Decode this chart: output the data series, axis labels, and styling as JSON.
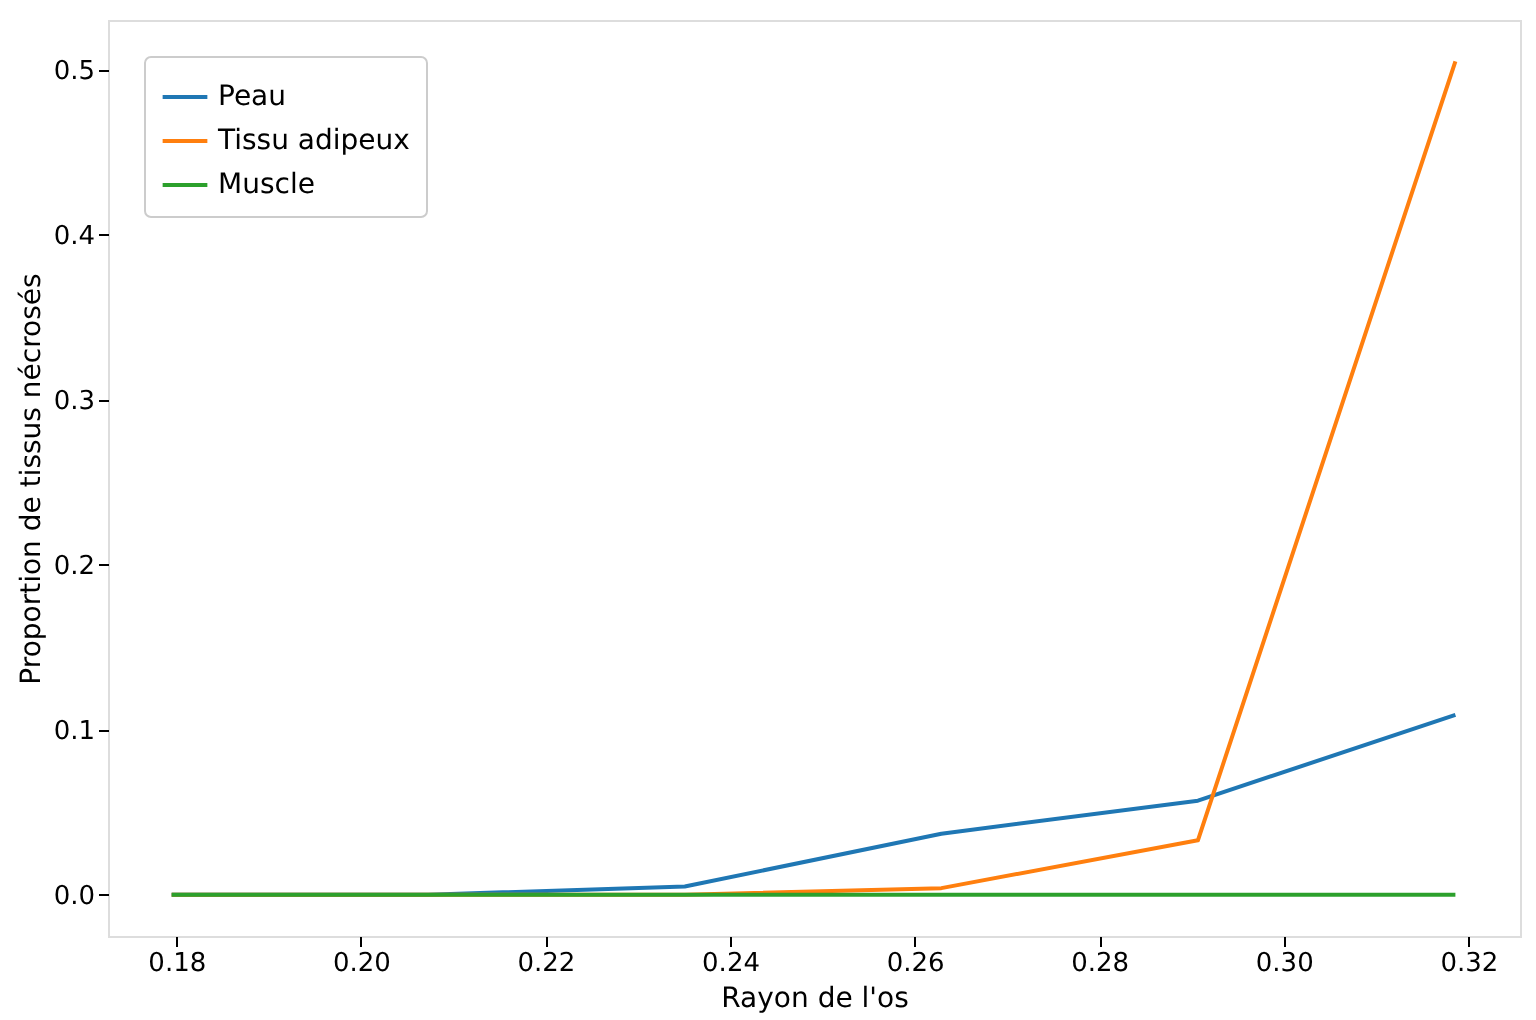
{
  "chart_data": {
    "type": "line",
    "xlabel": "Rayon de l'os",
    "ylabel": "Proportion de tissus nécrosés",
    "x": [
      0.1795,
      0.2073,
      0.2351,
      0.2629,
      0.2907,
      0.3186
    ],
    "series": [
      {
        "name": "Peau",
        "color": "#1f77b4",
        "values": [
          0,
          0,
          0.005,
          0.037,
          0.057,
          0.109
        ]
      },
      {
        "name": "Tissu adipeux",
        "color": "#ff7f0e",
        "values": [
          0,
          0,
          0,
          0.004,
          0.033,
          0.505
        ]
      },
      {
        "name": "Muscle",
        "color": "#2ca02c",
        "values": [
          0,
          0,
          0,
          0,
          0,
          0
        ]
      }
    ],
    "xlim": [
      0.1726,
      0.3256
    ],
    "ylim": [
      -0.025,
      0.53
    ],
    "xticks": [
      0.18,
      {
        "value": 0.2,
        "label": "0.20"
      },
      0.22,
      0.24,
      0.26,
      0.28,
      {
        "value": 0.3,
        "label": "0.30"
      },
      0.32
    ],
    "yticks": [
      {
        "value": 0,
        "label": "0.0"
      },
      0.1,
      0.2,
      0.3,
      0.4,
      0.5
    ],
    "grid": false,
    "legend": "top left",
    "marker": "none",
    "line_style": "solid"
  }
}
